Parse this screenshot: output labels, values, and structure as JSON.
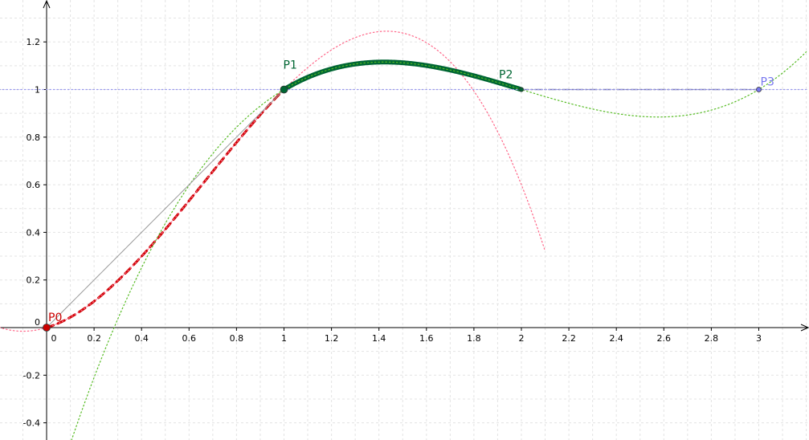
{
  "chart_data": {
    "type": "line",
    "xlim": [
      -0.2,
      3.2
    ],
    "ylim": [
      -0.47,
      1.38
    ],
    "grid": true,
    "grid_step": [
      0.1,
      0.1
    ],
    "x_ticks": [
      0,
      0.2,
      0.4,
      0.6,
      0.8,
      1,
      1.2,
      1.4,
      1.6,
      1.8,
      2,
      2.2,
      2.4,
      2.6,
      2.8,
      3
    ],
    "y_ticks": [
      -0.4,
      -0.2,
      0,
      0.2,
      0.4,
      0.6,
      0.8,
      1,
      1.2
    ],
    "tick_labels_x": [
      "0",
      "0.2",
      "0.4",
      "0.6",
      "0.8",
      "1",
      "1.2",
      "1.4",
      "1.6",
      "1.8",
      "2",
      "2.2",
      "2.4",
      "2.6",
      "2.8",
      "3"
    ],
    "tick_labels_y": [
      "-0.4",
      "-0.2",
      "0",
      "0.2",
      "0.4",
      "0.6",
      "0.8",
      "1",
      "1.2"
    ],
    "points": [
      {
        "label": "P0",
        "x": 0,
        "y": 0,
        "color": "#cc0000",
        "r": 4.5
      },
      {
        "label": "P1",
        "x": 1,
        "y": 1,
        "color": "#006633",
        "r": 4.5
      },
      {
        "label": "P2",
        "x": 2,
        "y": 1,
        "color": "#006633",
        "r": 2.5
      },
      {
        "label": "P3",
        "x": 3,
        "y": 1,
        "color": "#7777ee",
        "r": 3
      }
    ],
    "segments": [
      {
        "name": "s1",
        "coef": [
          0,
          0.3,
          1.4,
          -0.7
        ],
        "domain": [
          0,
          1
        ],
        "color": "#cc0000",
        "width": 3,
        "dash": "9,6"
      },
      {
        "name": "s1-ext",
        "coef": [
          0,
          0.3,
          1.4,
          -0.7
        ],
        "domain": [
          -0.2,
          2.1
        ],
        "color": "#ff6688",
        "width": 1.2,
        "dash": "1.5,3"
      },
      {
        "name": "s2",
        "coef": [
          1,
          0.6,
          -0.9,
          0.3
        ],
        "domain": [
          1,
          2
        ],
        "color": "#006633",
        "width": 6,
        "dash": ""
      },
      {
        "name": "s2-ext",
        "coef": [
          1,
          0.6,
          -0.9,
          0.3
        ],
        "domain": [
          0.1,
          3.2
        ],
        "color": "#55bb22",
        "width": 1.2,
        "dash": "1.5,3"
      },
      {
        "name": "chord",
        "coef": [
          0,
          1,
          0,
          0
        ],
        "domain": [
          0,
          1
        ],
        "color": "#999999",
        "width": 1,
        "dash": ""
      },
      {
        "name": "s3",
        "coef": [
          1,
          0,
          0,
          0
        ],
        "domain": [
          2,
          3
        ],
        "color": "#7777aa",
        "width": 1.6,
        "dash": "9,3,2,3"
      },
      {
        "name": "y1-line",
        "coef": [
          1,
          0,
          0,
          0
        ],
        "domain": [
          -0.2,
          3.2
        ],
        "color": "#9999ee",
        "width": 1.2,
        "dash": "1.5,3"
      }
    ]
  }
}
